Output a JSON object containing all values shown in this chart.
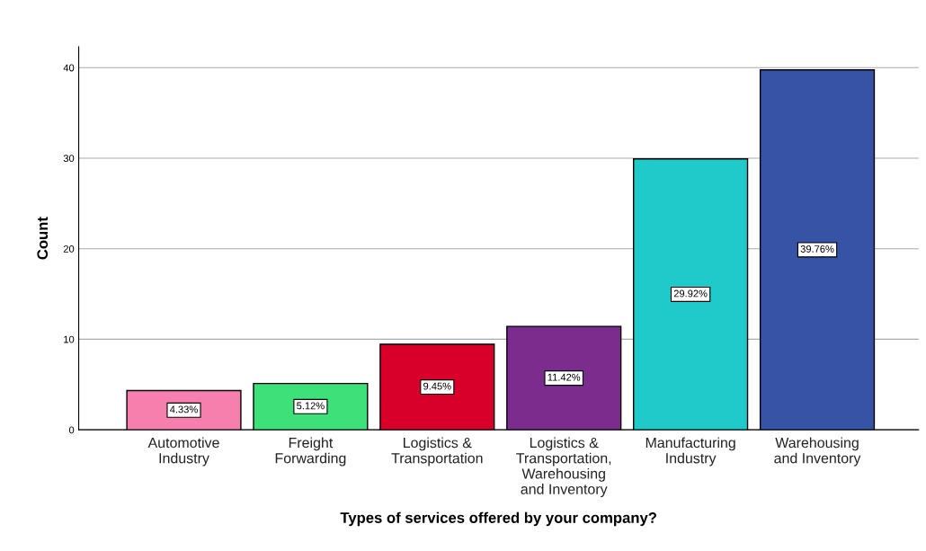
{
  "chart_data": {
    "type": "bar",
    "xlabel": "Types of services offered by your company?",
    "ylabel": "Count",
    "categories": [
      "Automotive\nIndustry",
      "Freight\nForwarding",
      "Logistics &\nTransportation",
      "Logistics &\nTransportation,\nWarehousing\nand Inventory",
      "Manufacturing\nIndustry",
      "Warehousing\nand Inventory"
    ],
    "values": [
      4.33,
      5.12,
      9.45,
      11.42,
      29.92,
      39.76
    ],
    "colors": [
      "#f77fae",
      "#3ee07a",
      "#d8002a",
      "#7a2d8c",
      "#1ecaca",
      "#3653a6"
    ],
    "value_labels": [
      "4.33%",
      "5.12%",
      "9.45%",
      "11.42%",
      "29.92%",
      "39.76%"
    ],
    "ylim": [
      0,
      42.3
    ],
    "yticks": [
      0,
      10,
      20,
      30,
      40
    ],
    "grid": "y",
    "legend": false
  }
}
